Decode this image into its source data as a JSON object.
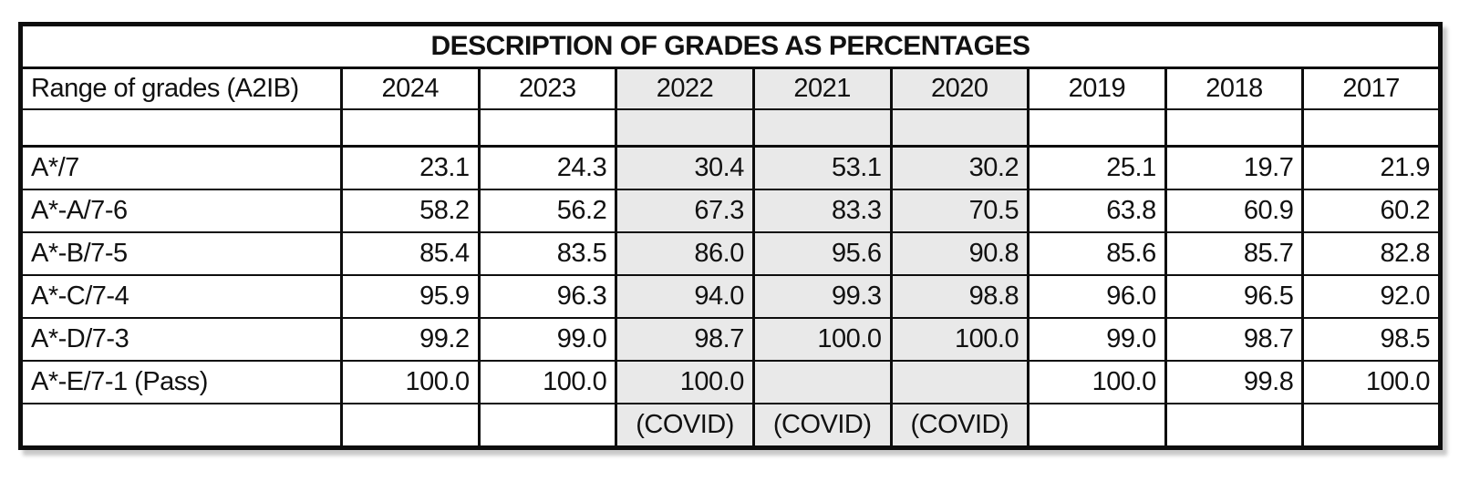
{
  "chart_data": {
    "type": "table",
    "title": "DESCRIPTION OF GRADES AS PERCENTAGES",
    "columns": [
      "Range of grades (A2IB)",
      "2024",
      "2023",
      "2022",
      "2021",
      "2020",
      "2019",
      "2018",
      "2017"
    ],
    "shaded_column_indexes": [
      3,
      4,
      5
    ],
    "body_rows": [
      {
        "type": "spacer",
        "label": "",
        "values": [
          "",
          "",
          "",
          "",
          "",
          "",
          "",
          ""
        ]
      },
      {
        "type": "data",
        "label": "A*/7",
        "values": [
          "23.1",
          "24.3",
          "30.4",
          "53.1",
          "30.2",
          "25.1",
          "19.7",
          "21.9"
        ]
      },
      {
        "type": "data",
        "label": "A*-A/7-6",
        "values": [
          "58.2",
          "56.2",
          "67.3",
          "83.3",
          "70.5",
          "63.8",
          "60.9",
          "60.2"
        ]
      },
      {
        "type": "data",
        "label": "A*-B/7-5",
        "values": [
          "85.4",
          "83.5",
          "86.0",
          "95.6",
          "90.8",
          "85.6",
          "85.7",
          "82.8"
        ]
      },
      {
        "type": "data",
        "label": "A*-C/7-4",
        "values": [
          "95.9",
          "96.3",
          "94.0",
          "99.3",
          "98.8",
          "96.0",
          "96.5",
          "92.0"
        ]
      },
      {
        "type": "data",
        "label": "A*-D/7-3",
        "values": [
          "99.2",
          "99.0",
          "98.7",
          "100.0",
          "100.0",
          "99.0",
          "98.7",
          "98.5"
        ]
      },
      {
        "type": "data",
        "label": "A*-E/7-1 (Pass)",
        "values": [
          "100.0",
          "100.0",
          "100.0",
          "",
          "",
          "100.0",
          "99.8",
          "100.0"
        ]
      },
      {
        "type": "note",
        "label": "",
        "values": [
          "",
          "",
          "(COVID)",
          "(COVID)",
          "(COVID)",
          "",
          "",
          ""
        ]
      }
    ],
    "colors": {
      "background": "#ffffff",
      "text": "#111111",
      "border": "#0d0d0d",
      "shaded_column_bg": "#e9e9e9"
    }
  }
}
